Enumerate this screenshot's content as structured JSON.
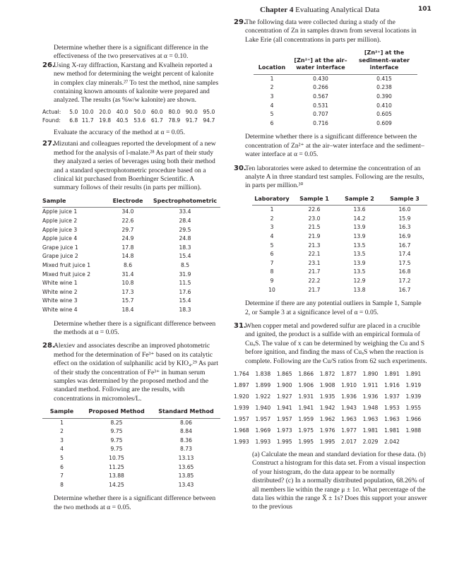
{
  "header": {
    "chapter_label": "Chapter",
    "chapter_number": "4",
    "chapter_title": "Evaluating Analytical Data",
    "page_number": "101"
  },
  "left": {
    "intro": "Determine whether there is a significant difference in the effectiveness of the two preservatives at α = 0.10.",
    "p26": {
      "number": "26.",
      "text": "Using X-ray diffraction, Karstang and Kvalhein reported a new method for determining the weight percent of kalonite in complex clay minerals.²⁷ To test the method, nine samples containing known amounts of kalonite were prepared and analyzed. The results (as %w/w kalonite) are shown.",
      "actual_label": "Actual:",
      "actual": [
        "5.0",
        "10.0",
        "20.0",
        "40.0",
        "50.0",
        "60.0",
        "80.0",
        "90.0",
        "95.0"
      ],
      "found_label": "Found:",
      "found": [
        "6.8",
        "11.7",
        "19.8",
        "40.5",
        "53.6",
        "61.7",
        "78.9",
        "91.7",
        "94.7"
      ],
      "question": "Evaluate the accuracy of the method at α = 0.05."
    },
    "p27": {
      "number": "27.",
      "text": "Mizutani and colleagues reported the development of a new method for the analysis of l-malate.²⁸ As part of their study they analyzed a series of beverages using both their method and a standard spectrophotometric procedure based on a clinical kit purchased from Boerhinger Scientific. A summary follows of their results (in parts per million).",
      "table": {
        "headers": [
          "Sample",
          "Electrode",
          "Spectrophotometric"
        ],
        "rows": [
          [
            "Apple juice 1",
            "34.0",
            "33.4"
          ],
          [
            "Apple juice 2",
            "22.6",
            "28.4"
          ],
          [
            "Apple juice 3",
            "29.7",
            "29.5"
          ],
          [
            "Apple juice 4",
            "24.9",
            "24.8"
          ],
          [
            "Grape juice 1",
            "17.8",
            "18.3"
          ],
          [
            "Grape juice 2",
            "14.8",
            "15.4"
          ],
          [
            "Mixed fruit juice 1",
            "8.6",
            "8.5"
          ],
          [
            "Mixed fruit juice 2",
            "31.4",
            "31.9"
          ],
          [
            "White wine 1",
            "10.8",
            "11.5"
          ],
          [
            "White wine 2",
            "17.3",
            "17.6"
          ],
          [
            "White wine 3",
            "15.7",
            "15.4"
          ],
          [
            "White wine 4",
            "18.4",
            "18.3"
          ]
        ]
      },
      "question": "Determine whether there is a significant difference between the methods at α = 0.05."
    },
    "p28": {
      "number": "28.",
      "text": "Alexiev and associates describe an improved photometric method for the determination of Fe³⁺ based on its catalytic effect on the oxidation of sulphanilic acid by KIO₄.²⁹ As part of their study the concentration of Fe³⁺ in human serum samples was determined by the proposed method and the standard method. Following are the results, with concentrations in micromoles/L.",
      "table": {
        "headers": [
          "Sample",
          "Proposed Method",
          "Standard Method"
        ],
        "rows": [
          [
            "1",
            "8.25",
            "8.06"
          ],
          [
            "2",
            "9.75",
            "8.84"
          ],
          [
            "3",
            "9.75",
            "8.36"
          ],
          [
            "4",
            "9.75",
            "8.73"
          ],
          [
            "5",
            "10.75",
            "13.13"
          ],
          [
            "6",
            "11.25",
            "13.65"
          ],
          [
            "7",
            "13.88",
            "13.85"
          ],
          [
            "8",
            "14.25",
            "13.43"
          ]
        ]
      },
      "question": "Determine whether there is a significant difference between the two methods at α = 0.05."
    }
  },
  "right": {
    "p29": {
      "number": "29.",
      "text": "The following data were collected during a study of the concentration of Zn in samples drawn from several locations in Lake Erie (all concentrations in parts per million).",
      "table": {
        "headers": [
          "Location",
          "[Zn²⁺] at the air–water interface",
          "[Zn²⁺] at the sediment–water interface"
        ],
        "rows": [
          [
            "1",
            "0.430",
            "0.415"
          ],
          [
            "2",
            "0.266",
            "0.238"
          ],
          [
            "3",
            "0.567",
            "0.390"
          ],
          [
            "4",
            "0.531",
            "0.410"
          ],
          [
            "5",
            "0.707",
            "0.605"
          ],
          [
            "6",
            "0.716",
            "0.609"
          ]
        ]
      },
      "question": "Determine whether there is a significant difference between the concentration of Zn²⁺ at the air–water interface and the sediment–water interface at α = 0.05."
    },
    "p30": {
      "number": "30.",
      "text": "Ten laboratories were asked to determine the concentration of an analyte A in three standard test samples. Following are the results, in parts per million.³⁰",
      "table": {
        "headers": [
          "Laboratory",
          "Sample 1",
          "Sample 2",
          "Sample 3"
        ],
        "rows": [
          [
            "1",
            "22.6",
            "13.6",
            "16.0"
          ],
          [
            "2",
            "23.0",
            "14.2",
            "15.9"
          ],
          [
            "3",
            "21.5",
            "13.9",
            "16.3"
          ],
          [
            "4",
            "21.9",
            "13.9",
            "16.9"
          ],
          [
            "5",
            "21.3",
            "13.5",
            "16.7"
          ],
          [
            "6",
            "22.1",
            "13.5",
            "17.4"
          ],
          [
            "7",
            "23.1",
            "13.9",
            "17.5"
          ],
          [
            "8",
            "21.7",
            "13.5",
            "16.8"
          ],
          [
            "9",
            "22.2",
            "12.9",
            "17.2"
          ],
          [
            "10",
            "21.7",
            "13.8",
            "16.7"
          ]
        ]
      },
      "question": "Determine if there are any potential outliers in Sample 1, Sample 2, or Sample 3 at a significance level of α = 0.05."
    },
    "p31": {
      "number": "31.",
      "text": "When copper metal and powdered sulfur are placed in a crucible and ignited, the product is a sulfide with an empirical formula of CuₓS. The value of x can be determined by weighing the Cu and S before ignition, and finding the mass of CuₓS when the reaction is complete. Following are the Cu/S ratios from 62 such experiments.",
      "data_rows": [
        [
          "1.764",
          "1.838",
          "1.865",
          "1.866",
          "1.872",
          "1.877",
          "1.890",
          "1.891",
          "1.891"
        ],
        [
          "1.897",
          "1.899",
          "1.900",
          "1.906",
          "1.908",
          "1.910",
          "1.911",
          "1.916",
          "1.919"
        ],
        [
          "1.920",
          "1.922",
          "1.927",
          "1.931",
          "1.935",
          "1.936",
          "1.936",
          "1.937",
          "1.939"
        ],
        [
          "1.939",
          "1.940",
          "1.941",
          "1.941",
          "1.942",
          "1.943",
          "1.948",
          "1.953",
          "1.955"
        ],
        [
          "1.957",
          "1.957",
          "1.957",
          "1.959",
          "1.962",
          "1.963",
          "1.963",
          "1.963",
          "1.966"
        ],
        [
          "1.968",
          "1.969",
          "1.973",
          "1.975",
          "1.976",
          "1.977",
          "1.981",
          "1.981",
          "1.988"
        ],
        [
          "1.993",
          "1.993",
          "1.995",
          "1.995",
          "1.995",
          "2.017",
          "2.029",
          "2.042"
        ]
      ],
      "question": "(a) Calculate the mean and standard deviation for these data. (b) Construct a histogram for this data set. From a visual inspection of your histogram, do the data appear to be normally distributed? (c) In a normally distributed population, 68.26% of all members lie within the range μ ± 1σ. What percentage of the data lies within the range X̄ ± 1s? Does this support your answer to the previous"
    }
  }
}
